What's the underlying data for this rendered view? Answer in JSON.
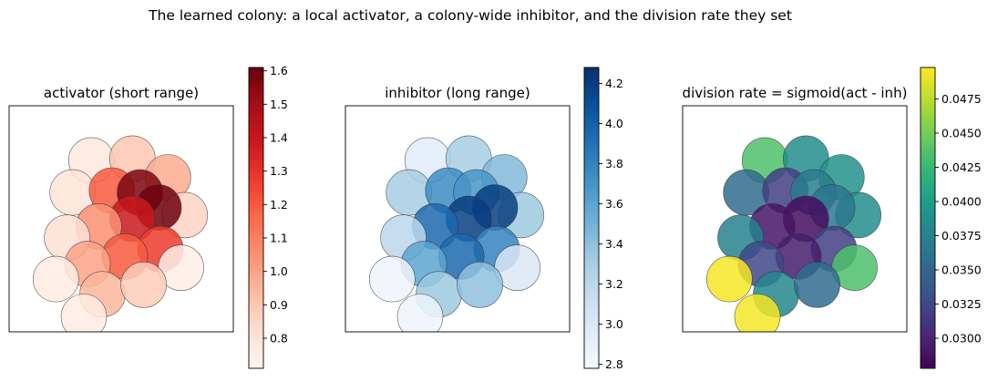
{
  "figure": {
    "suptitle": "The learned colony: a local activator, a colony-wide inhibitor, and the division rate they set"
  },
  "chart_data": [
    {
      "type": "scatter",
      "title": "activator  (short range)",
      "colormap": "Reds",
      "colorbar": {
        "range": [
          0.71,
          1.61
        ],
        "ticks": [
          0.8,
          0.9,
          1.0,
          1.1,
          1.2,
          1.3,
          1.4,
          1.5,
          1.6
        ],
        "tick_labels": [
          "0.8",
          "0.9",
          "1.0",
          "1.1",
          "1.2",
          "1.3",
          "1.4",
          "1.5",
          "1.6"
        ]
      },
      "xlim": [
        -6,
        6
      ],
      "ylim": [
        -6,
        6
      ],
      "grid": false,
      "axis_ticks": false,
      "points": [
        {
          "x": -1.6,
          "y": 3.1,
          "v": 0.78
        },
        {
          "x": 0.6,
          "y": 3.2,
          "v": 0.9
        },
        {
          "x": 2.5,
          "y": 2.2,
          "v": 0.98
        },
        {
          "x": -2.6,
          "y": 1.4,
          "v": 0.8
        },
        {
          "x": -0.5,
          "y": 1.5,
          "v": 1.2
        },
        {
          "x": 1.0,
          "y": 1.4,
          "v": 1.57
        },
        {
          "x": 3.4,
          "y": 0.2,
          "v": 0.86
        },
        {
          "x": 2.0,
          "y": 0.6,
          "v": 1.6
        },
        {
          "x": 0.6,
          "y": 0.0,
          "v": 1.39
        },
        {
          "x": -1.2,
          "y": -0.4,
          "v": 1.05
        },
        {
          "x": -2.9,
          "y": -1.0,
          "v": 0.82
        },
        {
          "x": 2.1,
          "y": -1.6,
          "v": 1.28
        },
        {
          "x": 0.2,
          "y": -2.0,
          "v": 1.2
        },
        {
          "x": -1.8,
          "y": -2.4,
          "v": 1.0
        },
        {
          "x": 3.2,
          "y": -2.6,
          "v": 0.75
        },
        {
          "x": -3.5,
          "y": -3.2,
          "v": 0.76
        },
        {
          "x": -1.0,
          "y": -4.0,
          "v": 0.95
        },
        {
          "x": 1.2,
          "y": -3.5,
          "v": 0.88
        },
        {
          "x": -2.0,
          "y": -5.2,
          "v": 0.76
        }
      ]
    },
    {
      "type": "scatter",
      "title": "inhibitor  (long range)",
      "colormap": "Blues",
      "colorbar": {
        "range": [
          2.78,
          4.28
        ],
        "ticks": [
          2.8,
          3.0,
          3.2,
          3.4,
          3.6,
          3.8,
          4.0,
          4.2
        ],
        "tick_labels": [
          "2.8",
          "3.0",
          "3.2",
          "3.4",
          "3.6",
          "3.8",
          "4.0",
          "4.2"
        ]
      },
      "xlim": [
        -6,
        6
      ],
      "ylim": [
        -6,
        6
      ],
      "grid": false,
      "axis_ticks": false,
      "points": [
        {
          "x": -1.6,
          "y": 3.1,
          "v": 2.95
        },
        {
          "x": 0.6,
          "y": 3.2,
          "v": 3.3
        },
        {
          "x": 2.5,
          "y": 2.2,
          "v": 3.45
        },
        {
          "x": -2.6,
          "y": 1.4,
          "v": 3.3
        },
        {
          "x": -0.5,
          "y": 1.5,
          "v": 3.75
        },
        {
          "x": 1.0,
          "y": 1.4,
          "v": 3.7
        },
        {
          "x": 3.4,
          "y": 0.2,
          "v": 3.35
        },
        {
          "x": 2.0,
          "y": 0.6,
          "v": 4.2
        },
        {
          "x": 0.6,
          "y": 0.0,
          "v": 4.2
        },
        {
          "x": -1.2,
          "y": -0.4,
          "v": 3.95
        },
        {
          "x": -2.9,
          "y": -1.0,
          "v": 3.2
        },
        {
          "x": 2.1,
          "y": -1.6,
          "v": 3.8
        },
        {
          "x": 0.2,
          "y": -2.0,
          "v": 3.95
        },
        {
          "x": -1.8,
          "y": -2.4,
          "v": 3.6
        },
        {
          "x": 3.2,
          "y": -2.6,
          "v": 3.0
        },
        {
          "x": -3.5,
          "y": -3.2,
          "v": 2.85
        },
        {
          "x": -1.0,
          "y": -4.0,
          "v": 3.35
        },
        {
          "x": 1.2,
          "y": -3.5,
          "v": 3.4
        },
        {
          "x": -2.0,
          "y": -5.2,
          "v": 2.85
        }
      ]
    },
    {
      "type": "scatter",
      "title": "division rate = sigmoid(act - inh)",
      "colormap": "viridis",
      "colorbar": {
        "range": [
          0.0278,
          0.0498
        ],
        "ticks": [
          0.03,
          0.0325,
          0.035,
          0.0375,
          0.04,
          0.0425,
          0.045,
          0.0475
        ],
        "tick_labels": [
          "0.0300",
          "0.0325",
          "0.0350",
          "0.0375",
          "0.0400",
          "0.0425",
          "0.0450",
          "0.0475"
        ]
      },
      "xlim": [
        -6,
        6
      ],
      "ylim": [
        -6,
        6
      ],
      "grid": false,
      "axis_ticks": false,
      "points": [
        {
          "x": -1.6,
          "y": 3.1,
          "v": 0.0435
        },
        {
          "x": 0.6,
          "y": 3.2,
          "v": 0.0385
        },
        {
          "x": 2.5,
          "y": 2.2,
          "v": 0.039
        },
        {
          "x": -2.6,
          "y": 1.4,
          "v": 0.0355
        },
        {
          "x": -0.5,
          "y": 1.5,
          "v": 0.032
        },
        {
          "x": 1.0,
          "y": 1.4,
          "v": 0.037
        },
        {
          "x": 3.4,
          "y": 0.2,
          "v": 0.0385
        },
        {
          "x": 2.0,
          "y": 0.6,
          "v": 0.0365
        },
        {
          "x": 0.6,
          "y": 0.0,
          "v": 0.0285
        },
        {
          "x": -1.2,
          "y": -0.4,
          "v": 0.029
        },
        {
          "x": -2.9,
          "y": -1.0,
          "v": 0.0375
        },
        {
          "x": 2.1,
          "y": -1.6,
          "v": 0.032
        },
        {
          "x": 0.2,
          "y": -2.0,
          "v": 0.0295
        },
        {
          "x": -1.8,
          "y": -2.4,
          "v": 0.0325
        },
        {
          "x": 3.2,
          "y": -2.6,
          "v": 0.0435
        },
        {
          "x": -3.5,
          "y": -3.2,
          "v": 0.0495
        },
        {
          "x": -1.0,
          "y": -4.0,
          "v": 0.038
        },
        {
          "x": 1.2,
          "y": -3.5,
          "v": 0.0355
        },
        {
          "x": -2.0,
          "y": -5.2,
          "v": 0.0495
        }
      ]
    }
  ]
}
